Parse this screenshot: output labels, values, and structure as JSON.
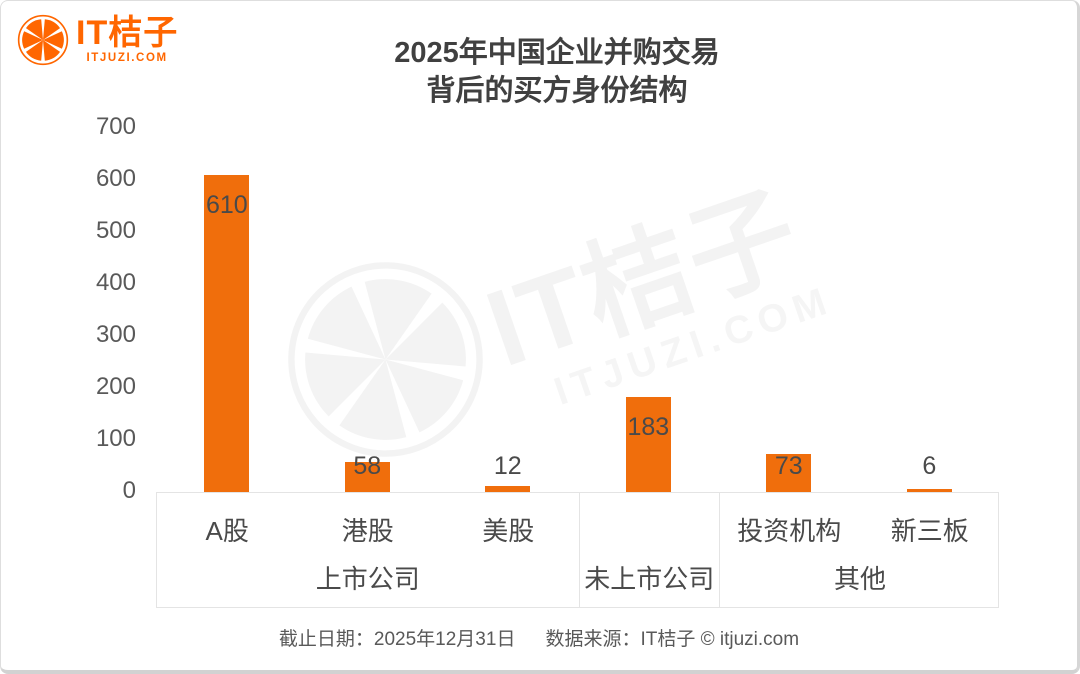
{
  "page": {
    "logo": {
      "title": "IT桔子",
      "subtitle": "ITJUZI.COM"
    },
    "watermark": {
      "line1": "IT桔子",
      "line2": "ITJUZI.COM"
    },
    "footer": {
      "date": "截止日期：2025年12月31日",
      "source": "数据来源：IT桔子 © itjuzi.com"
    }
  },
  "chart_data": {
    "type": "bar",
    "title_lines": [
      "2025年中国企业并购交易",
      "背后的买方身份结构"
    ],
    "categories": [
      "A股",
      "港股",
      "美股",
      "未上市公司",
      "投资机构",
      "新三板"
    ],
    "values": [
      610,
      58,
      12,
      183,
      73,
      6
    ],
    "groups": [
      {
        "label": "上市公司",
        "span": 3,
        "sub_labels": [
          "A股",
          "港股",
          "美股"
        ]
      },
      {
        "label": "未上市公司",
        "span": 1,
        "sub_labels": [
          ""
        ]
      },
      {
        "label": "其他",
        "span": 2,
        "sub_labels": [
          "投资机构",
          "新三板"
        ]
      }
    ],
    "ylim": [
      0,
      700
    ],
    "yticks": [
      0,
      100,
      200,
      300,
      400,
      500,
      600,
      700
    ],
    "grid": false,
    "legend": false,
    "value_labels": true,
    "colors": {
      "brand_orange": "#FF6600",
      "bar_orange": "#F06E0C",
      "title_text": "#404040",
      "axis_text": "#595959",
      "value_text": "#4A4A4A",
      "category_text": "#4A4A4A",
      "footer_text": "#595959",
      "border": "#E4E4E4",
      "watermark": "#F3F3F3"
    }
  }
}
